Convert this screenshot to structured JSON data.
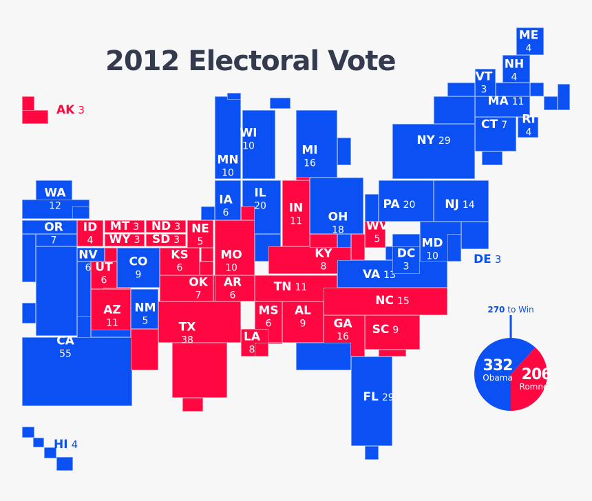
{
  "title": {
    "year": "2012",
    "text": "Electoral Vote"
  },
  "colors": {
    "dem": "#0a50f2",
    "rep": "#ff0842",
    "background": "#f7f7f7",
    "title": "#343b4f"
  },
  "states": [
    {
      "abbr": "AK",
      "votes": "3",
      "party": "rep"
    },
    {
      "abbr": "HI",
      "votes": "4",
      "party": "dem"
    },
    {
      "abbr": "WA",
      "votes": "12",
      "party": "dem"
    },
    {
      "abbr": "OR",
      "votes": "7",
      "party": "dem"
    },
    {
      "abbr": "CA",
      "votes": "55",
      "party": "dem"
    },
    {
      "abbr": "ID",
      "votes": "4",
      "party": "rep"
    },
    {
      "abbr": "MT",
      "votes": "3",
      "party": "rep"
    },
    {
      "abbr": "WY",
      "votes": "3",
      "party": "rep"
    },
    {
      "abbr": "ND",
      "votes": "3",
      "party": "rep"
    },
    {
      "abbr": "SD",
      "votes": "3",
      "party": "rep"
    },
    {
      "abbr": "NE",
      "votes": "5",
      "party": "rep"
    },
    {
      "abbr": "NV",
      "votes": "6",
      "party": "dem"
    },
    {
      "abbr": "UT",
      "votes": "6",
      "party": "rep"
    },
    {
      "abbr": "CO",
      "votes": "9",
      "party": "dem"
    },
    {
      "abbr": "AZ",
      "votes": "11",
      "party": "rep"
    },
    {
      "abbr": "NM",
      "votes": "5",
      "party": "dem"
    },
    {
      "abbr": "KS",
      "votes": "6",
      "party": "rep"
    },
    {
      "abbr": "OK",
      "votes": "7",
      "party": "rep"
    },
    {
      "abbr": "TX",
      "votes": "38",
      "party": "rep"
    },
    {
      "abbr": "MN",
      "votes": "10",
      "party": "dem"
    },
    {
      "abbr": "WI",
      "votes": "10",
      "party": "dem"
    },
    {
      "abbr": "IA",
      "votes": "6",
      "party": "dem"
    },
    {
      "abbr": "IL",
      "votes": "20",
      "party": "dem"
    },
    {
      "abbr": "MO",
      "votes": "10",
      "party": "rep"
    },
    {
      "abbr": "AR",
      "votes": "6",
      "party": "rep"
    },
    {
      "abbr": "MS",
      "votes": "6",
      "party": "rep"
    },
    {
      "abbr": "LA",
      "votes": "8",
      "party": "rep"
    },
    {
      "abbr": "AL",
      "votes": "9",
      "party": "rep"
    },
    {
      "abbr": "TN",
      "votes": "11",
      "party": "rep"
    },
    {
      "abbr": "KY",
      "votes": "8",
      "party": "rep"
    },
    {
      "abbr": "IN",
      "votes": "11",
      "party": "rep"
    },
    {
      "abbr": "MI",
      "votes": "16",
      "party": "dem"
    },
    {
      "abbr": "OH",
      "votes": "18",
      "party": "dem"
    },
    {
      "abbr": "WV",
      "votes": "5",
      "party": "rep"
    },
    {
      "abbr": "VA",
      "votes": "13",
      "party": "dem"
    },
    {
      "abbr": "NC",
      "votes": "15",
      "party": "rep"
    },
    {
      "abbr": "SC",
      "votes": "9",
      "party": "rep"
    },
    {
      "abbr": "GA",
      "votes": "16",
      "party": "rep"
    },
    {
      "abbr": "FL",
      "votes": "29",
      "party": "dem"
    },
    {
      "abbr": "PA",
      "votes": "20",
      "party": "dem"
    },
    {
      "abbr": "NJ",
      "votes": "14",
      "party": "dem"
    },
    {
      "abbr": "NY",
      "votes": "29",
      "party": "dem"
    },
    {
      "abbr": "MD",
      "votes": "10",
      "party": "dem"
    },
    {
      "abbr": "DC",
      "votes": "3",
      "party": "dem"
    },
    {
      "abbr": "DE",
      "votes": "3",
      "party": "dem"
    },
    {
      "abbr": "VT",
      "votes": "3",
      "party": "dem"
    },
    {
      "abbr": "NH",
      "votes": "4",
      "party": "dem"
    },
    {
      "abbr": "ME",
      "votes": "4",
      "party": "dem"
    },
    {
      "abbr": "MA",
      "votes": "11",
      "party": "dem"
    },
    {
      "abbr": "CT",
      "votes": "7",
      "party": "dem"
    },
    {
      "abbr": "RI",
      "votes": "4",
      "party": "dem"
    }
  ],
  "totals": {
    "threshold": {
      "number": "270",
      "text": "to Win"
    },
    "obama": {
      "votes": 332,
      "votes_label": "332",
      "name": "Obama"
    },
    "romney": {
      "votes": 206,
      "votes_label": "206",
      "name": "Romney"
    }
  }
}
